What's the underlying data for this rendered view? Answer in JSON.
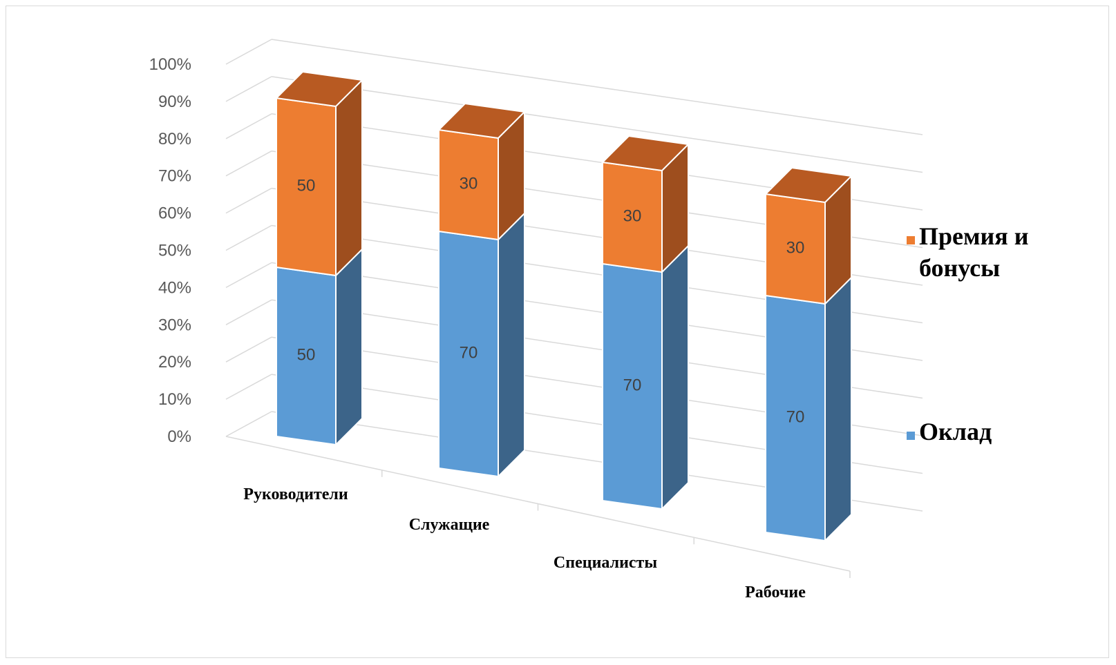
{
  "chart_data": {
    "type": "bar",
    "stacked": true,
    "percent": true,
    "three_d": true,
    "categories": [
      "Руководители",
      "Служащие",
      "Специалисты",
      "Рабочие"
    ],
    "series": [
      {
        "name": "Оклад",
        "values": [
          50,
          70,
          70,
          70
        ],
        "color": "#5b9bd5",
        "side_color": "#3c6489",
        "top_color": "#4a7fb0"
      },
      {
        "name": "Премия и бонусы",
        "values": [
          50,
          30,
          30,
          30
        ],
        "color": "#ed7d31",
        "side_color": "#9e4e1e",
        "top_color": "#b85a22"
      }
    ],
    "ytick_labels": [
      "0%",
      "10%",
      "20%",
      "30%",
      "40%",
      "50%",
      "60%",
      "70%",
      "80%",
      "90%",
      "100%"
    ],
    "ylim": [
      0,
      100
    ],
    "grid": true,
    "legend": {
      "placement": "right",
      "entries": [
        {
          "lines": [
            "Премия и",
            "бонусы"
          ],
          "series": "Премия и бонусы"
        },
        {
          "lines": [
            "Оклад"
          ],
          "series": "Оклад"
        }
      ]
    }
  }
}
